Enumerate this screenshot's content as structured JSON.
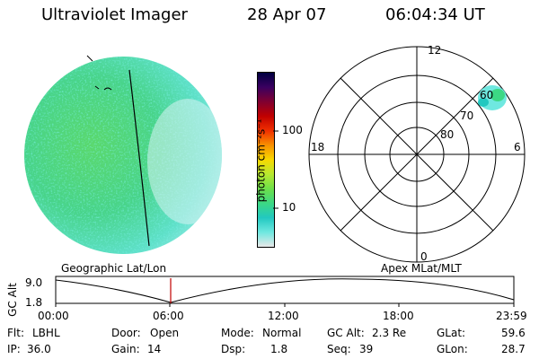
{
  "header": {
    "instrument": "Ultraviolet Imager",
    "date": "28 Apr 07",
    "time": "06:04:34 UT"
  },
  "colorbar": {
    "unit_label": "photon cm⁻²s⁻¹",
    "ticks": [
      "100",
      "10"
    ],
    "scale": "log",
    "colors": [
      "#e8e8e8",
      "#6fe8e0",
      "#22c8c0",
      "#3cd884",
      "#6ee04a",
      "#b8e830",
      "#f8d800",
      "#f89000",
      "#f03000",
      "#c00000",
      "#800030",
      "#3a0060",
      "#000040"
    ]
  },
  "polar_plot": {
    "mlt_labels": {
      "top": "12",
      "left": "18",
      "right": "6",
      "bottom": "0"
    },
    "lat_labels": [
      "60",
      "70",
      "80"
    ]
  },
  "timeline": {
    "left_title": "Geographic Lat/Lon",
    "right_title": "Apex MLat/MLT",
    "y_axis_label": "GC Alt",
    "y_ticks": [
      "9.0",
      "1.8"
    ],
    "x_ticks": [
      "00:00",
      "06:00",
      "12:00",
      "18:00",
      "23:59"
    ],
    "current_marker_color": "#c00000"
  },
  "info": {
    "filter_label": "Flt:",
    "filter_value": "LBHL",
    "door_label": "Door:",
    "door_value": "Open",
    "mode_label": "Mode:",
    "mode_value": "Normal",
    "gcalt_label": "GC Alt:",
    "gcalt_value": "2.3 Re",
    "glat_label": "GLat:",
    "glat_value": "59.6",
    "ip_label": "IP:",
    "ip_value": "36.0",
    "gain_label": "Gain:",
    "gain_value": "14",
    "dsp_label": "Dsp:",
    "dsp_value": "1.8",
    "seq_label": "Seq:",
    "seq_value": "39",
    "glon_label": "GLon:",
    "glon_value": "28.7"
  }
}
